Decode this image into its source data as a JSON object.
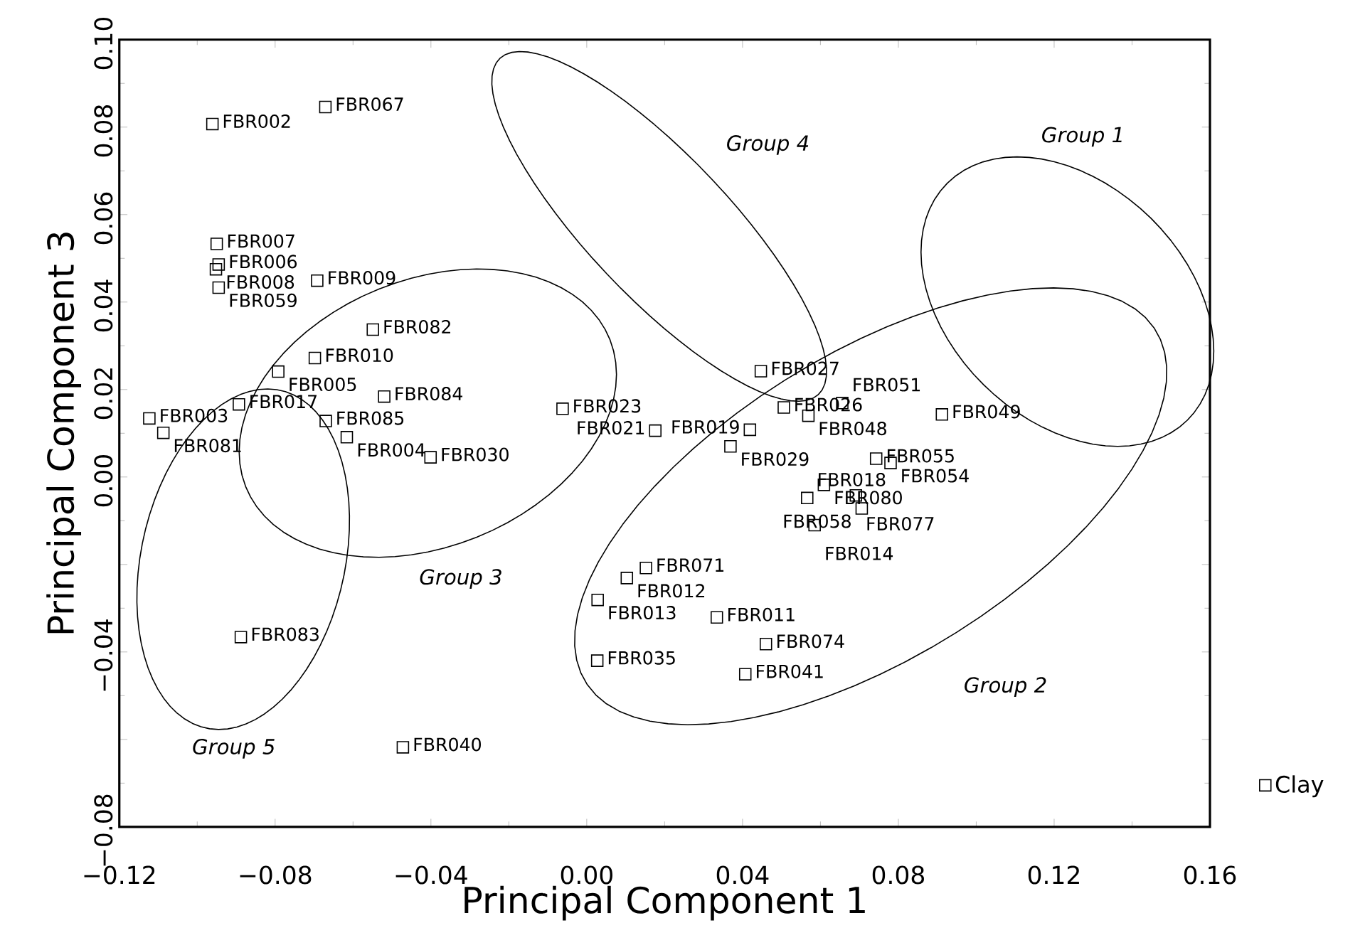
{
  "chart_data": {
    "type": "scatter",
    "xlabel": "Principal Component 1",
    "ylabel": "Principal Component 3",
    "xlim": [
      -0.12,
      0.16
    ],
    "ylim": [
      -0.08,
      0.1
    ],
    "xticks": [
      {
        "value": -0.12,
        "label": "−0.12"
      },
      {
        "value": -0.08,
        "label": "−0.08"
      },
      {
        "value": -0.04,
        "label": "−0.04"
      },
      {
        "value": 0.0,
        "label": "0.00"
      },
      {
        "value": 0.04,
        "label": "0.04"
      },
      {
        "value": 0.08,
        "label": "0.08"
      },
      {
        "value": 0.12,
        "label": "0.12"
      },
      {
        "value": 0.16,
        "label": "0.16"
      }
    ],
    "yticks": [
      {
        "value": -0.08,
        "label": "−0.08"
      },
      {
        "value": -0.06,
        "label": null
      },
      {
        "value": -0.04,
        "label": "−0.04"
      },
      {
        "value": -0.02,
        "label": null
      },
      {
        "value": 0.0,
        "label": "0.00"
      },
      {
        "value": 0.02,
        "label": "0.02"
      },
      {
        "value": 0.04,
        "label": "0.04"
      },
      {
        "value": 0.06,
        "label": "0.06"
      },
      {
        "value": 0.08,
        "label": "0.08"
      },
      {
        "value": 0.1,
        "label": "0.10"
      }
    ],
    "legend": "bottom right",
    "series": [
      {
        "name": "Clay",
        "color": "#000000",
        "marker": "square",
        "x": [
          -0.0671,
          -0.0961,
          -0.095,
          -0.0945,
          -0.0952,
          -0.0945,
          -0.0692,
          -0.0549,
          -0.0698,
          -0.0792,
          -0.052,
          -0.0893,
          -0.1123,
          -0.1087,
          -0.067,
          -0.0616,
          -0.0401,
          -0.0062,
          0.0447,
          0.0506,
          0.0569,
          0.0656,
          0.0419,
          0.0176,
          0.0369,
          0.0912,
          0.0743,
          0.078,
          0.0609,
          0.0566,
          0.0691,
          0.0706,
          0.0585,
          0.0152,
          0.0103,
          0.0028,
          0.0334,
          0.046,
          0.0027,
          0.0407,
          -0.0888,
          -0.0472
        ],
        "values": [
          0.0846,
          0.0807,
          0.0533,
          0.0486,
          0.0475,
          0.0433,
          0.0449,
          0.0337,
          0.0272,
          0.0241,
          0.0184,
          0.0166,
          0.0134,
          0.0101,
          0.0128,
          0.0091,
          0.0045,
          0.0156,
          0.0242,
          0.0159,
          0.014,
          0.0169,
          0.0108,
          0.0106,
          0.007,
          0.0143,
          0.0042,
          0.0032,
          -0.0018,
          -0.0048,
          -0.0042,
          -0.0072,
          -0.011,
          -0.0208,
          -0.0231,
          -0.0281,
          -0.0321,
          -0.0382,
          -0.042,
          -0.0451,
          -0.0366,
          -0.0618
        ],
        "value_labels": [
          "FBR067",
          "FBR002",
          "FBR007",
          "FBR006",
          "FBR008",
          "FBR059",
          "FBR009",
          "FBR082",
          "FBR010",
          "FBR005",
          "FBR084",
          "FBR017",
          "FBR003",
          "FBR081",
          "FBR085",
          "FBR004",
          "FBR030",
          "FBR023",
          "FBR027",
          "FBR026",
          "FBR048",
          "FBR051",
          "FBR019",
          "FBR021",
          "FBR029",
          "FBR049",
          "FBR055",
          "FBR054",
          "FBR080",
          "FBR018",
          "FBR077",
          "FBR058",
          "FBR014",
          "FBR071",
          "FBR012",
          "FBR013",
          "FBR011",
          "FBR074",
          "FBR035",
          "FBR041",
          "FBR083",
          "FBR040"
        ]
      }
    ],
    "annotations": [
      "Group 1",
      "Group 2",
      "Group 3",
      "Group 4",
      "Group 5"
    ]
  }
}
